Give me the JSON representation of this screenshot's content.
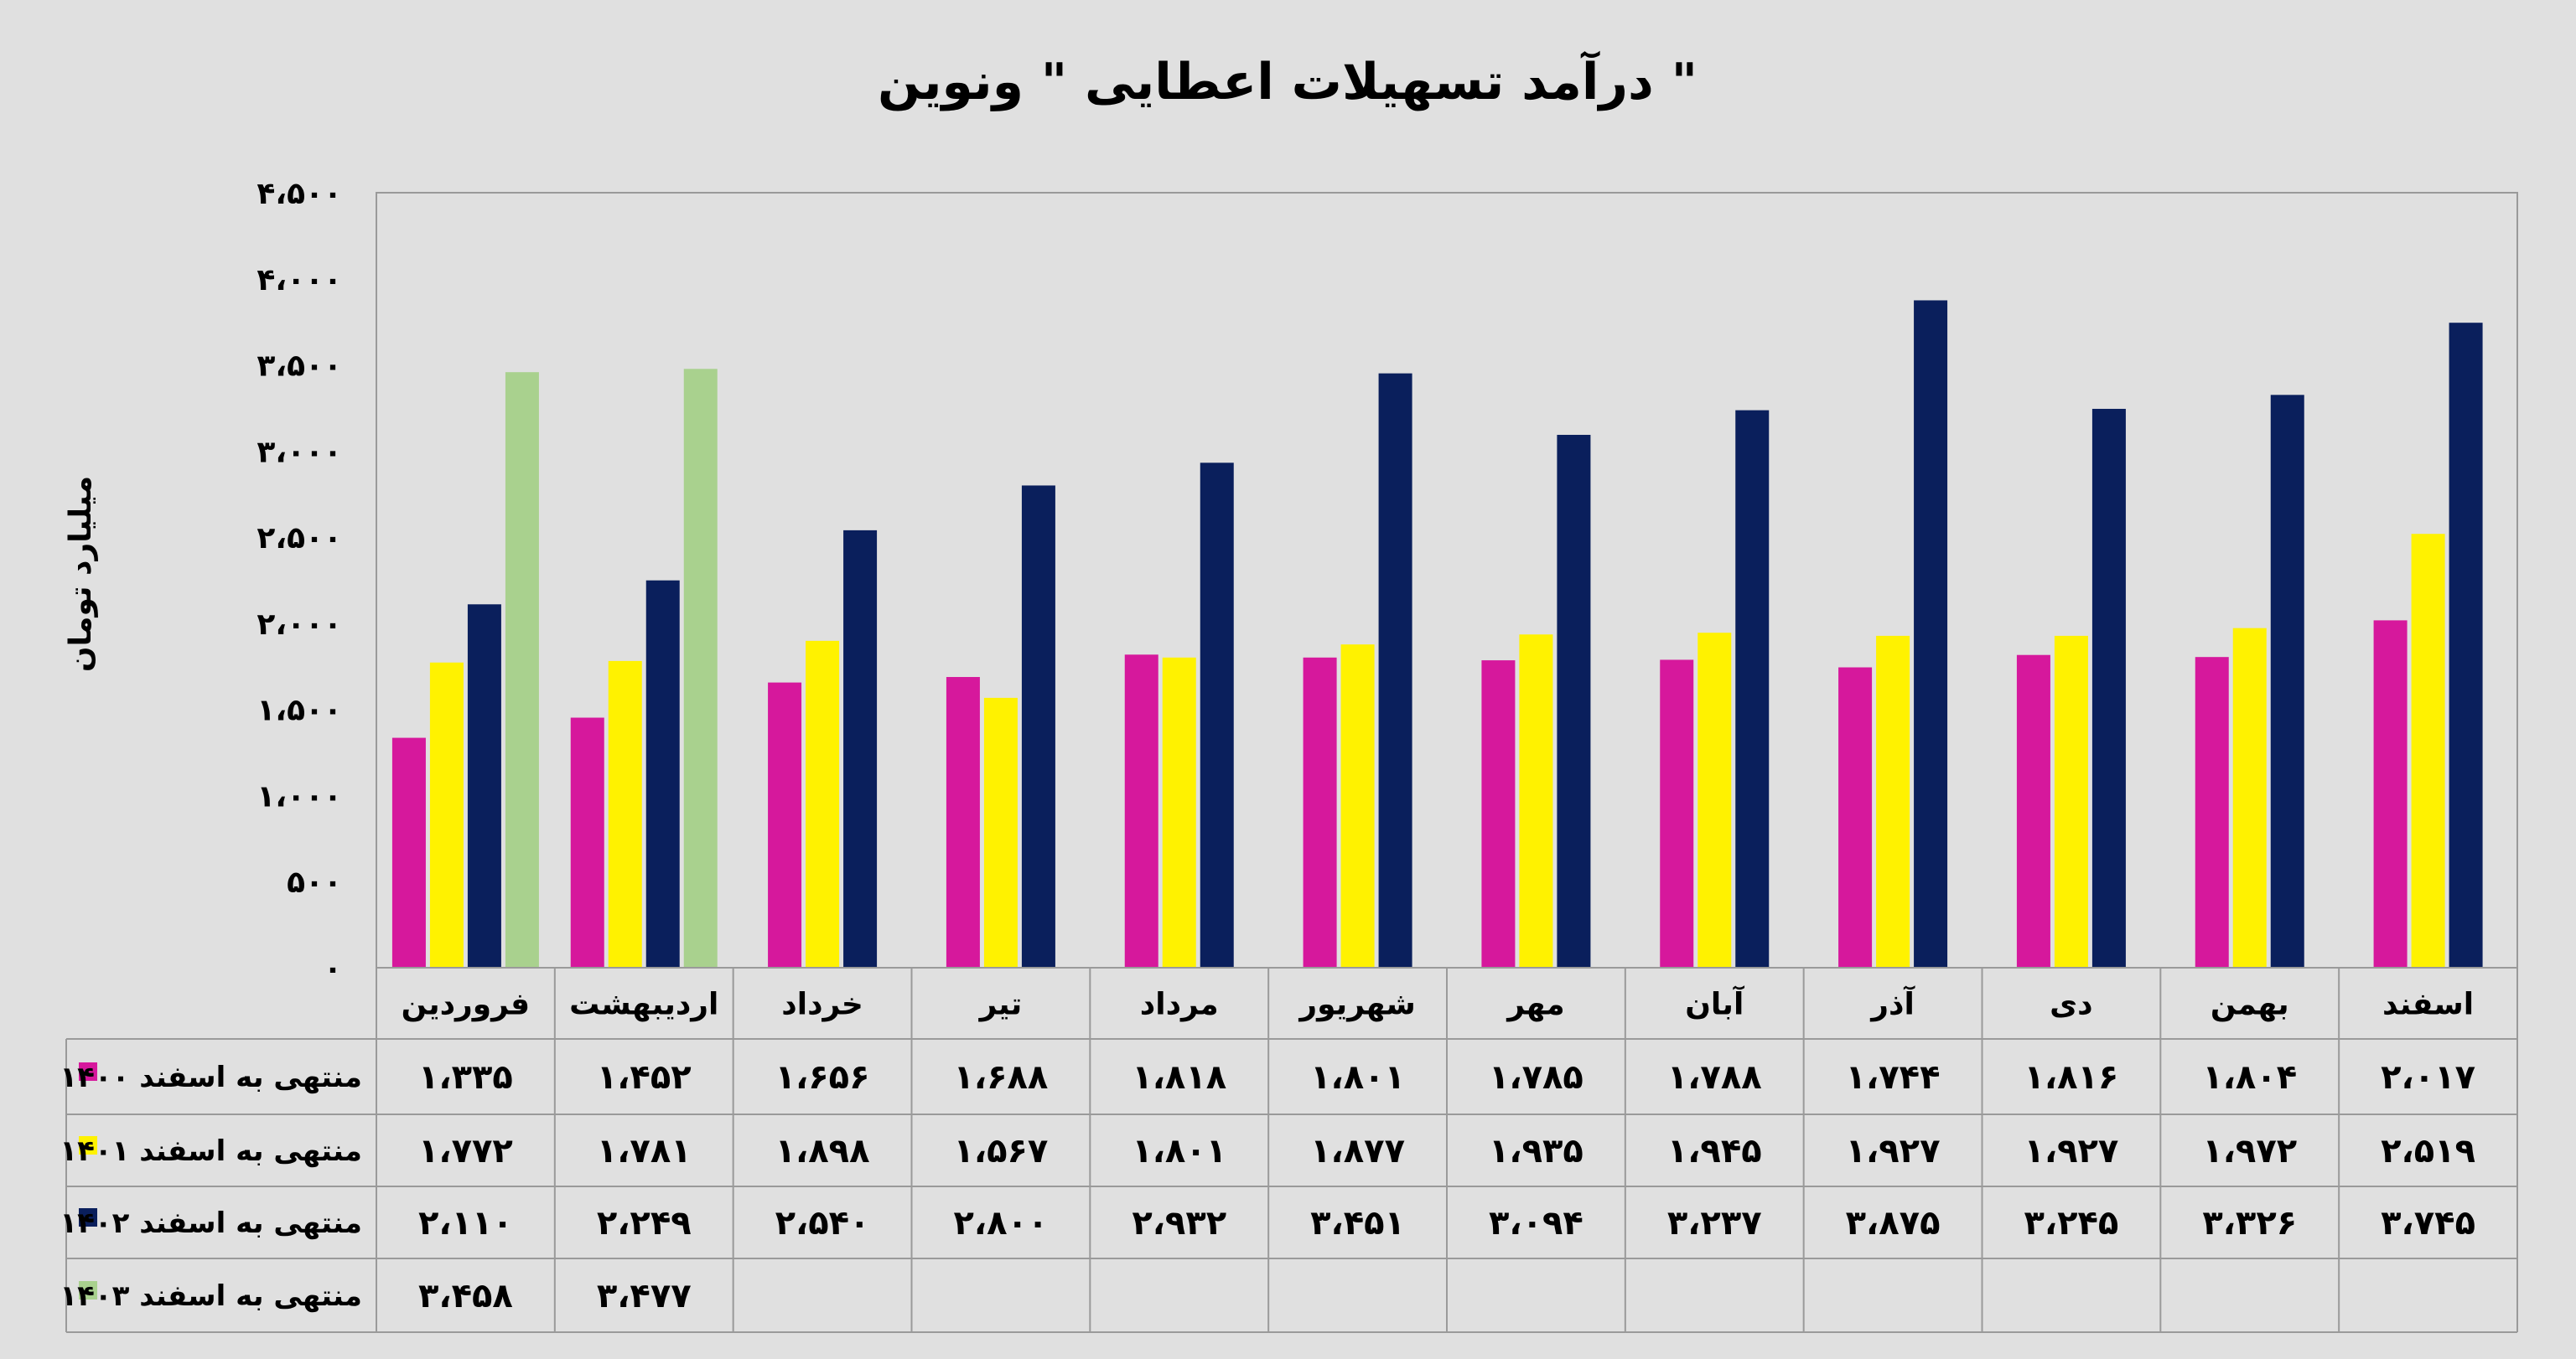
{
  "chart_data": {
    "type": "bar",
    "title": "درآمد تسهیلات اعطایی \" ونوین \"",
    "ylabel": "میلیارد تومان",
    "xlabel": "",
    "ylim": [
      0,
      4500
    ],
    "yticks": [
      0,
      500,
      1000,
      1500,
      2000,
      2500,
      3000,
      3500,
      4000,
      4500
    ],
    "ytick_labels": [
      "۰",
      "۵۰۰",
      "۱،۰۰۰",
      "۱،۵۰۰",
      "۲،۰۰۰",
      "۲،۵۰۰",
      "۳،۰۰۰",
      "۳،۵۰۰",
      "۴،۰۰۰",
      "۴،۵۰۰"
    ],
    "grid": false,
    "legend": "data-table-left",
    "categories": [
      "فروردین",
      "اردیبهشت",
      "خرداد",
      "تیر",
      "مرداد",
      "شهریور",
      "مهر",
      "آبان",
      "آذر",
      "دی",
      "بهمن",
      "اسفند"
    ],
    "series": [
      {
        "name": "منتهی به اسفند ۱۴۰۰",
        "color": "#d6189c",
        "values": [
          1335,
          1452,
          1656,
          1688,
          1818,
          1801,
          1785,
          1788,
          1744,
          1816,
          1804,
          2017
        ],
        "labels": [
          "۱،۳۳۵",
          "۱،۴۵۲",
          "۱،۶۵۶",
          "۱،۶۸۸",
          "۱،۸۱۸",
          "۱،۸۰۱",
          "۱،۷۸۵",
          "۱،۷۸۸",
          "۱،۷۴۴",
          "۱،۸۱۶",
          "۱،۸۰۴",
          "۲،۰۱۷"
        ]
      },
      {
        "name": "منتهی به اسفند ۱۴۰۱",
        "color": "#fff200",
        "values": [
          1772,
          1781,
          1898,
          1567,
          1801,
          1877,
          1935,
          1945,
          1927,
          1927,
          1972,
          2519
        ],
        "labels": [
          "۱،۷۷۲",
          "۱،۷۸۱",
          "۱،۸۹۸",
          "۱،۵۶۷",
          "۱،۸۰۱",
          "۱،۸۷۷",
          "۱،۹۳۵",
          "۱،۹۴۵",
          "۱،۹۲۷",
          "۱،۹۲۷",
          "۱،۹۷۲",
          "۲،۵۱۹"
        ]
      },
      {
        "name": "منتهی به اسفند ۱۴۰۲",
        "color": "#0a1f5c",
        "values": [
          2110,
          2249,
          2540,
          2800,
          2932,
          3451,
          3094,
          3237,
          3875,
          3245,
          3326,
          3745
        ],
        "labels": [
          "۲،۱۱۰",
          "۲،۲۴۹",
          "۲،۵۴۰",
          "۲،۸۰۰",
          "۲،۹۳۲",
          "۳،۴۵۱",
          "۳،۰۹۴",
          "۳،۲۳۷",
          "۳،۸۷۵",
          "۳،۲۴۵",
          "۳،۳۲۶",
          "۳،۷۴۵"
        ]
      },
      {
        "name": "منتهی به اسفند ۱۴۰۳",
        "color": "#a9d18e",
        "values": [
          3458,
          3477,
          null,
          null,
          null,
          null,
          null,
          null,
          null,
          null,
          null,
          null
        ],
        "labels": [
          "۳،۴۵۸",
          "۳،۴۷۷",
          "",
          "",
          "",
          "",
          "",
          "",
          "",
          "",
          "",
          ""
        ]
      }
    ]
  },
  "colors": {
    "background": "#e0e0e0",
    "border": "#9a9a9a",
    "text": "#000000"
  }
}
